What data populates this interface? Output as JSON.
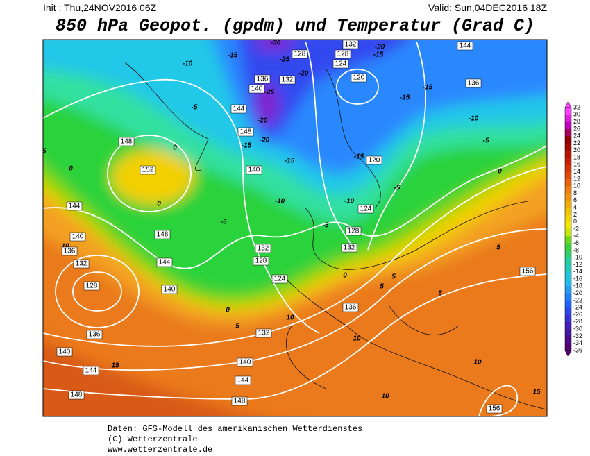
{
  "header": {
    "init": "Init : Thu,24NOV2016 06Z",
    "valid": "Valid: Sun,04DEC2016 18Z",
    "title": "850 hPa Geopot. (gpdm) und Temperatur (Grad C)"
  },
  "colorbar": {
    "labels": [
      32,
      30,
      28,
      26,
      24,
      22,
      20,
      18,
      16,
      14,
      12,
      10,
      8,
      6,
      4,
      2,
      0,
      -2,
      -4,
      -6,
      -8,
      -10,
      -12,
      -14,
      -16,
      -18,
      -20,
      -22,
      -24,
      -26,
      -28,
      -30,
      -32,
      -34,
      -36
    ]
  },
  "map": {
    "contour_labels": [
      "-30",
      "128",
      "-25",
      "-10",
      "-15",
      "132",
      "-20",
      "128",
      "-15",
      "124",
      "144",
      "-20",
      "136",
      "132",
      "120",
      "136",
      "-15",
      "140",
      "-25",
      "-15",
      "-5",
      "144",
      "-20",
      "-10",
      "148",
      "-20",
      "-5",
      "148",
      "-15",
      "0",
      "-5",
      "-15",
      "-15",
      "120",
      "0",
      "152",
      "140",
      "0",
      "-5",
      "-10",
      "-10",
      "0",
      "144",
      "124",
      "-5",
      "-5",
      "128",
      "148",
      "140",
      "10",
      "132",
      "132",
      "5",
      "136",
      "128",
      "144",
      "132",
      "156",
      "0",
      "5",
      "124",
      "128",
      "5",
      "140",
      "5",
      "136",
      "0",
      "10",
      "5",
      "132",
      "136",
      "10",
      "140",
      "140",
      "10",
      "15",
      "144",
      "144",
      "148",
      "10",
      "15",
      "148",
      "156"
    ]
  },
  "footer": {
    "lines": [
      "Daten: GFS-Modell des amerikanischen Wetterdienstes",
      "(C) Wetterzentrale",
      "www.wetterzentrale.de"
    ]
  }
}
